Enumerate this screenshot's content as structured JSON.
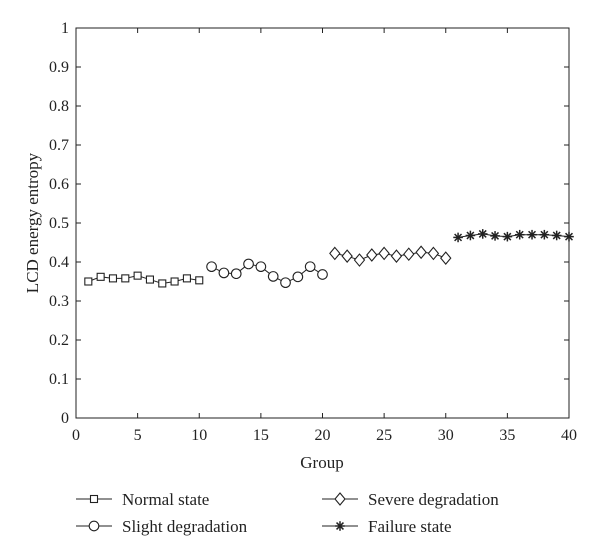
{
  "chart_data": {
    "type": "line",
    "xlabel": "Group",
    "ylabel": "LCD energy entropy",
    "xlim": [
      0,
      40
    ],
    "ylim": [
      0,
      1
    ],
    "xticks": [
      0,
      5,
      10,
      15,
      20,
      25,
      30,
      35,
      40
    ],
    "yticks": [
      0,
      0.1,
      0.2,
      0.3,
      0.4,
      0.5,
      0.6,
      0.7,
      0.8,
      0.9,
      1
    ],
    "grid": false,
    "legend_position": "bottom",
    "series": [
      {
        "name": "Normal state",
        "marker": "square",
        "x": [
          1,
          2,
          3,
          4,
          5,
          6,
          7,
          8,
          9,
          10
        ],
        "y": [
          0.35,
          0.362,
          0.358,
          0.358,
          0.365,
          0.355,
          0.345,
          0.35,
          0.358,
          0.353
        ]
      },
      {
        "name": "Slight degradation",
        "marker": "circle",
        "x": [
          11,
          12,
          13,
          14,
          15,
          16,
          17,
          18,
          19,
          20
        ],
        "y": [
          0.388,
          0.372,
          0.37,
          0.395,
          0.388,
          0.363,
          0.347,
          0.362,
          0.388,
          0.368
        ]
      },
      {
        "name": "Severe degradation",
        "marker": "diamond",
        "x": [
          21,
          22,
          23,
          24,
          25,
          26,
          27,
          28,
          29,
          30
        ],
        "y": [
          0.422,
          0.415,
          0.405,
          0.418,
          0.422,
          0.415,
          0.42,
          0.425,
          0.422,
          0.41
        ]
      },
      {
        "name": "Failure state",
        "marker": "asterisk",
        "x": [
          31,
          32,
          33,
          34,
          35,
          36,
          37,
          38,
          39,
          40
        ],
        "y": [
          0.463,
          0.468,
          0.472,
          0.467,
          0.465,
          0.47,
          0.47,
          0.47,
          0.468,
          0.465
        ]
      }
    ]
  }
}
